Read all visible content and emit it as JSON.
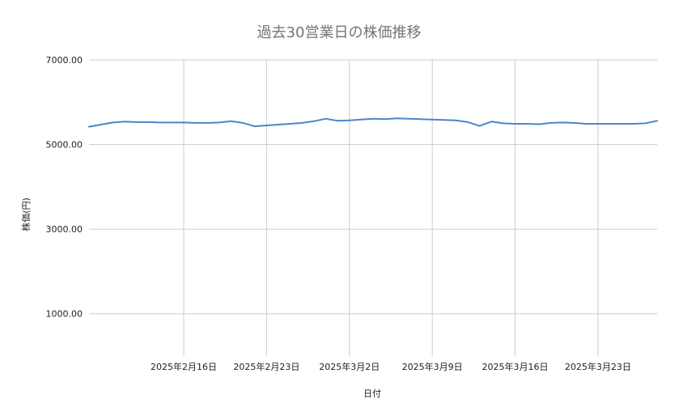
{
  "chart_data": {
    "type": "line",
    "title": "過去30営業日の株価推移",
    "xlabel": "日付",
    "ylabel": "株価(円)",
    "ylim": [
      0,
      7000
    ],
    "yticks": [
      1000,
      3000,
      5000,
      7000
    ],
    "ytick_labels": [
      "1000.00",
      "3000.00",
      "5000.00",
      "7000.00"
    ],
    "xlim": [
      "2025-02-08",
      "2025-03-28"
    ],
    "xticks": [
      "2025-02-16",
      "2025-02-23",
      "2025-03-02",
      "2025-03-09",
      "2025-03-16",
      "2025-03-23"
    ],
    "xtick_labels": [
      "2025年2月16日",
      "2025年2月23日",
      "2025年3月2日",
      "2025年3月9日",
      "2025年3月16日",
      "2025年3月23日"
    ],
    "grid": true,
    "legend": "none",
    "color": "#4a86c8",
    "x": [
      "2025-02-08",
      "2025-02-09",
      "2025-02-10",
      "2025-02-11",
      "2025-02-12",
      "2025-02-13",
      "2025-02-14",
      "2025-02-15",
      "2025-02-16",
      "2025-02-17",
      "2025-02-18",
      "2025-02-19",
      "2025-02-20",
      "2025-02-21",
      "2025-02-22",
      "2025-02-23",
      "2025-02-24",
      "2025-02-25",
      "2025-02-26",
      "2025-02-27",
      "2025-02-28",
      "2025-03-01",
      "2025-03-02",
      "2025-03-03",
      "2025-03-04",
      "2025-03-05",
      "2025-03-06",
      "2025-03-07",
      "2025-03-08",
      "2025-03-09",
      "2025-03-10",
      "2025-03-11",
      "2025-03-12",
      "2025-03-13",
      "2025-03-14",
      "2025-03-15",
      "2025-03-16",
      "2025-03-17",
      "2025-03-18",
      "2025-03-19",
      "2025-03-20",
      "2025-03-21",
      "2025-03-22",
      "2025-03-23",
      "2025-03-24",
      "2025-03-25",
      "2025-03-26",
      "2025-03-27",
      "2025-03-28"
    ],
    "values": [
      5420,
      5470,
      5520,
      5540,
      5530,
      5530,
      5520,
      5520,
      5520,
      5510,
      5510,
      5520,
      5550,
      5510,
      5430,
      5450,
      5470,
      5490,
      5510,
      5550,
      5610,
      5560,
      5570,
      5590,
      5610,
      5600,
      5620,
      5610,
      5600,
      5590,
      5580,
      5570,
      5530,
      5440,
      5540,
      5500,
      5490,
      5490,
      5480,
      5510,
      5520,
      5510,
      5490,
      5490,
      5490,
      5490,
      5490,
      5500,
      5560
    ]
  }
}
